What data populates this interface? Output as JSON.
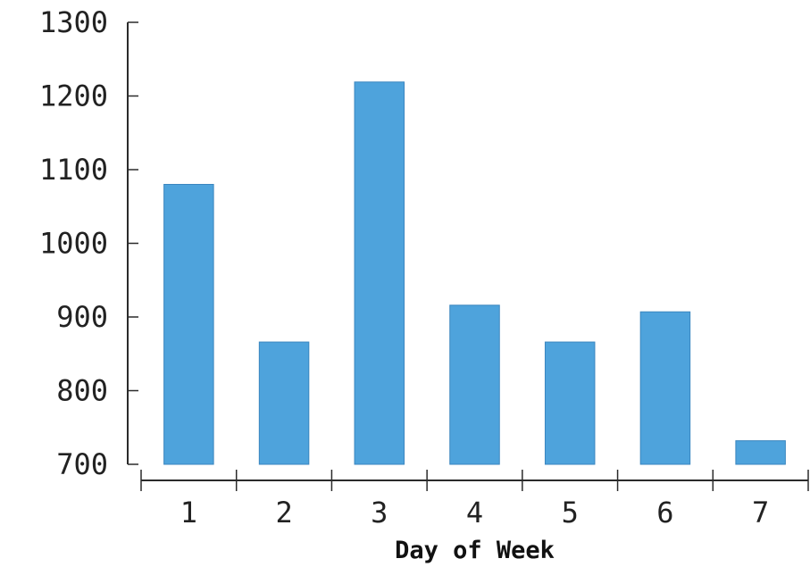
{
  "chart_data": {
    "type": "bar",
    "title": "",
    "xlabel": "Day of Week",
    "ylabel": "",
    "categories": [
      "1",
      "2",
      "3",
      "4",
      "5",
      "6",
      "7"
    ],
    "values": [
      1080,
      866,
      1219,
      916,
      866,
      907,
      732
    ],
    "ylim": [
      700,
      1300
    ],
    "yticks": [
      700,
      800,
      900,
      1000,
      1100,
      1200,
      1300
    ],
    "grid": false,
    "bar_color": "#4ea3dc"
  }
}
